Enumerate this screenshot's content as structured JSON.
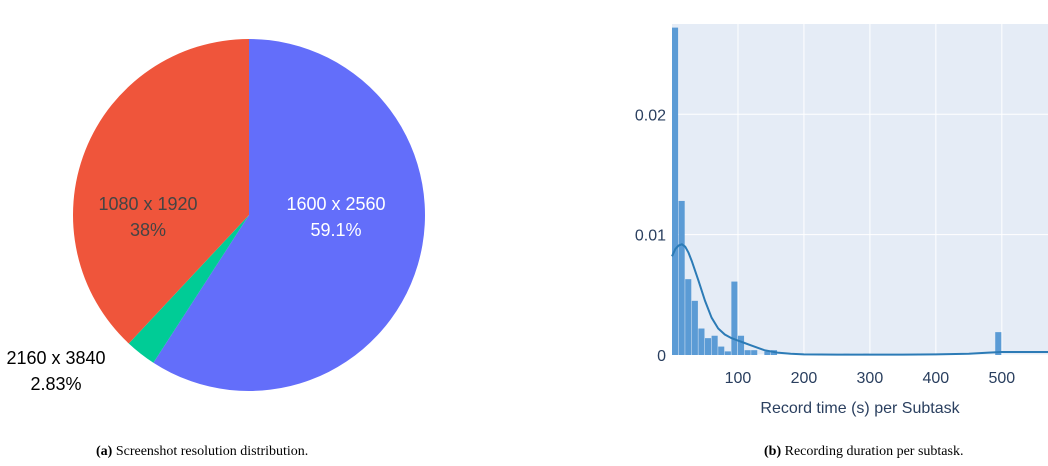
{
  "chart_data": [
    {
      "type": "pie",
      "slices": [
        {
          "label": "1600 x 2560",
          "percent_label": "59.1%",
          "value": 59.1,
          "color": "#636efa",
          "text_color": "#ffffff"
        },
        {
          "label": "2160 x 3840",
          "percent_label": "2.83%",
          "value": 2.83,
          "color": "#00cc96",
          "text_color": "#000000"
        },
        {
          "label": "1080 x 1920",
          "percent_label": "38%",
          "value": 38.0,
          "color": "#ef553b",
          "text_color": "#444444"
        }
      ]
    },
    {
      "type": "bar",
      "subtype": "histogram",
      "xlabel": "Record time (s) per Subtask",
      "ylabel": "",
      "xlim": [
        0,
        570
      ],
      "ylim": [
        0,
        0.0275
      ],
      "x_ticks": [
        "100",
        "200",
        "300",
        "400",
        "500"
      ],
      "x_tick_values": [
        100,
        200,
        300,
        400,
        500
      ],
      "y_ticks": [
        "0",
        "0.01",
        "0.02"
      ],
      "y_tick_values": [
        0,
        0.01,
        0.02
      ],
      "bar_color": "#5b9bd5",
      "background_color": "#e5ecf6",
      "grid": true,
      "bins": [
        {
          "x0": 0,
          "x1": 10,
          "y": 0.0272
        },
        {
          "x0": 10,
          "x1": 20,
          "y": 0.0128
        },
        {
          "x0": 20,
          "x1": 30,
          "y": 0.0063
        },
        {
          "x0": 30,
          "x1": 40,
          "y": 0.0045
        },
        {
          "x0": 40,
          "x1": 50,
          "y": 0.0022
        },
        {
          "x0": 50,
          "x1": 60,
          "y": 0.0014
        },
        {
          "x0": 60,
          "x1": 70,
          "y": 0.0016
        },
        {
          "x0": 70,
          "x1": 80,
          "y": 0.0007
        },
        {
          "x0": 80,
          "x1": 90,
          "y": 0.0003
        },
        {
          "x0": 90,
          "x1": 100,
          "y": 0.0061
        },
        {
          "x0": 100,
          "x1": 110,
          "y": 0.0016
        },
        {
          "x0": 110,
          "x1": 120,
          "y": 0.0004
        },
        {
          "x0": 120,
          "x1": 130,
          "y": 0.0004
        },
        {
          "x0": 140,
          "x1": 150,
          "y": 0.0003
        },
        {
          "x0": 150,
          "x1": 160,
          "y": 0.0004
        },
        {
          "x0": 210,
          "x1": 230,
          "y": 0.0001
        },
        {
          "x0": 260,
          "x1": 270,
          "y": 0.0001
        },
        {
          "x0": 290,
          "x1": 300,
          "y": 0.0001
        },
        {
          "x0": 490,
          "x1": 500,
          "y": 0.0019
        }
      ],
      "density_curve": {
        "x": [
          0,
          5,
          10,
          15,
          20,
          25,
          30,
          40,
          50,
          60,
          70,
          80,
          90,
          100,
          110,
          120,
          140,
          160,
          180,
          200,
          250,
          300,
          350,
          400,
          450,
          480,
          500,
          530,
          570
        ],
        "y": [
          0.0082,
          0.0088,
          0.0091,
          0.0092,
          0.009,
          0.0085,
          0.0078,
          0.0062,
          0.0045,
          0.0031,
          0.0022,
          0.0017,
          0.0014,
          0.0012,
          0.001,
          0.0008,
          0.0004,
          0.0002,
          0.0001,
          5e-05,
          3e-05,
          3e-05,
          3e-05,
          5e-05,
          0.0001,
          0.0002,
          0.00025,
          0.00025,
          0.00025
        ]
      },
      "curve_color": "#2c7bb6"
    }
  ],
  "captions": {
    "a_label": "(a)",
    "a_text": "Screenshot resolution distribution.",
    "b_label": "(b)",
    "b_text": "Recording duration per subtask."
  }
}
